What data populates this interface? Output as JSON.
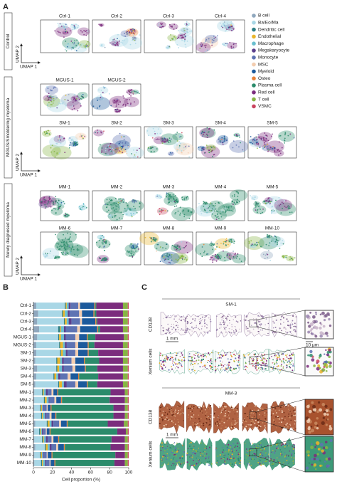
{
  "panel_a": {
    "label": "A",
    "umap_x": "UMAP 1",
    "umap_y": "UMAP 2",
    "groups": [
      {
        "label": "Control",
        "samples": [
          "Ctrl-1",
          "Ctrl-2",
          "Ctrl-3",
          "Ctrl-4"
        ]
      },
      {
        "label": "MGUS/Smoldering myeloma",
        "samples": [
          "MGUS-1",
          "MGUS-2",
          "SM-1",
          "SM-2",
          "SM-3",
          "SM-4",
          "SM-5"
        ]
      },
      {
        "label": "Newly diagnosed myeloma",
        "samples": [
          "MM-1",
          "MM-2",
          "MM-3",
          "MM-4",
          "MM-5",
          "MM-6",
          "MM-7",
          "MM-8",
          "MM-9",
          "MM-10"
        ]
      }
    ]
  },
  "panel_b": {
    "label": "B"
  },
  "chart_data": {
    "type": "stacked_bar",
    "orientation": "horizontal",
    "categories": [
      "Ctrl-1",
      "Ctrl-2",
      "Ctrl-3",
      "Ctrl-4",
      "MGUS-1",
      "MGUS-2",
      "SM-1",
      "SM-2",
      "SM-3",
      "SM-4",
      "SM-5",
      "MM-1",
      "MM-2",
      "MM-3",
      "MM-4",
      "MM-5",
      "MM-6",
      "MM-7",
      "MM-8",
      "MM-9",
      "MM-10"
    ],
    "series": [
      {
        "name": "B cell",
        "color": "#8fa7bd",
        "values": [
          3,
          5,
          4,
          6,
          4,
          3,
          3,
          2,
          4,
          3,
          2,
          1,
          1,
          1,
          1,
          2,
          1,
          1,
          2,
          1,
          1
        ]
      },
      {
        "name": "Ba/Eo/Ma",
        "color": "#a9d7e6",
        "values": [
          30,
          25,
          28,
          20,
          22,
          24,
          25,
          22,
          20,
          18,
          24,
          8,
          10,
          6,
          7,
          12,
          5,
          8,
          10,
          6,
          7
        ]
      },
      {
        "name": "Dendritic cell",
        "color": "#2f7f86",
        "values": [
          1,
          1,
          1,
          2,
          1,
          1,
          1,
          1,
          1,
          1,
          1,
          1,
          1,
          1,
          1,
          1,
          1,
          1,
          1,
          1,
          1
        ]
      },
      {
        "name": "Endothelial",
        "color": "#e9b52b",
        "values": [
          1,
          2,
          2,
          1,
          2,
          3,
          2,
          3,
          2,
          2,
          3,
          1,
          2,
          1,
          1,
          2,
          1,
          1,
          2,
          1,
          1
        ]
      },
      {
        "name": "Macrophage",
        "color": "#69bfcf",
        "values": [
          2,
          3,
          2,
          3,
          3,
          2,
          3,
          2,
          3,
          2,
          2,
          2,
          2,
          1,
          2,
          2,
          1,
          2,
          2,
          1,
          2
        ]
      },
      {
        "name": "Megakaryocyte",
        "color": "#5b3f8c",
        "values": [
          2,
          2,
          3,
          2,
          2,
          2,
          2,
          2,
          2,
          2,
          3,
          2,
          1,
          1,
          1,
          2,
          1,
          2,
          2,
          1,
          1
        ]
      },
      {
        "name": "Monocyte",
        "color": "#5e73b3",
        "values": [
          8,
          10,
          9,
          12,
          10,
          9,
          8,
          8,
          9,
          8,
          9,
          4,
          5,
          3,
          4,
          6,
          3,
          4,
          5,
          3,
          4
        ]
      },
      {
        "name": "MSC",
        "color": "#f3cdb0",
        "values": [
          2,
          3,
          2,
          3,
          4,
          3,
          3,
          4,
          3,
          3,
          3,
          2,
          2,
          1,
          2,
          2,
          1,
          2,
          2,
          1,
          1
        ]
      },
      {
        "name": "Myeloid",
        "color": "#1c5a9c",
        "values": [
          15,
          12,
          14,
          18,
          8,
          10,
          10,
          9,
          10,
          8,
          9,
          4,
          5,
          3,
          4,
          6,
          3,
          5,
          6,
          4,
          4
        ]
      },
      {
        "name": "Osteo",
        "color": "#e8833a",
        "values": [
          1,
          1,
          1,
          1,
          1,
          1,
          1,
          1,
          1,
          1,
          1,
          1,
          1,
          1,
          1,
          1,
          1,
          1,
          1,
          1,
          1
        ]
      },
      {
        "name": "Plasma cell",
        "color": "#2b8b6b",
        "values": [
          1,
          2,
          1,
          2,
          8,
          6,
          10,
          15,
          12,
          20,
          10,
          55,
          50,
          65,
          60,
          42,
          70,
          55,
          48,
          66,
          62
        ]
      },
      {
        "name": "Red cell",
        "color": "#7b2c7d",
        "values": [
          28,
          28,
          27,
          24,
          30,
          30,
          26,
          25,
          27,
          26,
          27,
          15,
          16,
          12,
          12,
          17,
          9,
          14,
          15,
          10,
          11
        ]
      },
      {
        "name": "T cell",
        "color": "#86b544",
        "values": [
          5,
          5,
          5,
          5,
          4,
          5,
          5,
          5,
          5,
          5,
          5,
          3,
          3,
          3,
          3,
          4,
          2,
          3,
          3,
          3,
          3
        ]
      },
      {
        "name": "VSMC",
        "color": "#c9445f",
        "values": [
          1,
          1,
          1,
          1,
          1,
          1,
          1,
          1,
          1,
          1,
          1,
          1,
          1,
          1,
          1,
          1,
          1,
          1,
          1,
          1,
          1
        ]
      }
    ],
    "xlim": [
      0,
      100
    ],
    "xticks": [
      0,
      20,
      40,
      60,
      80,
      100
    ],
    "xlabel": "Cell proportion (%)"
  },
  "panel_c": {
    "label": "C",
    "sections": [
      {
        "title": "SM-1",
        "stains": [
          "CD138",
          "Xenium cells"
        ],
        "scale": "1 mm",
        "zoom_scale": "10 μm"
      },
      {
        "title": "MM-3",
        "stains": [
          "CD138",
          "Xenium cells"
        ],
        "scale": "1 mm",
        "zoom_scale": "10 μm"
      }
    ]
  }
}
